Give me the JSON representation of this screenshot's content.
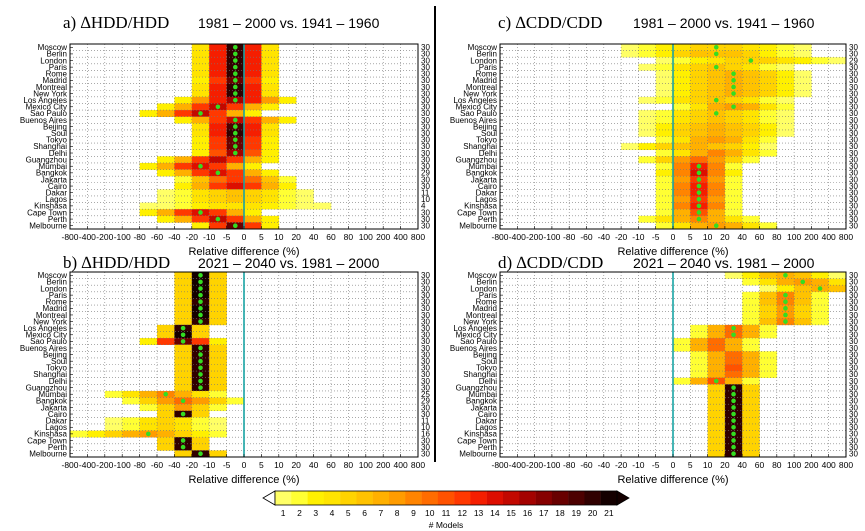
{
  "figure": {
    "colorbar_label": "# Models",
    "colorbar_ticks": [
      "1",
      "2",
      "3",
      "4",
      "5",
      "6",
      "7",
      "8",
      "9",
      "10",
      "11",
      "12",
      "13",
      "14",
      "15",
      "16",
      "17",
      "18",
      "19",
      "20",
      "21"
    ],
    "colorbar_colors": [
      "#ffff66",
      "#ffff33",
      "#fff000",
      "#ffe400",
      "#ffd300",
      "#ffc200",
      "#ffb000",
      "#ff9c00",
      "#ff8400",
      "#ff6c00",
      "#ff5200",
      "#ff3800",
      "#f51e00",
      "#dd0e00",
      "#c20800",
      "#a40200",
      "#860000",
      "#680000",
      "#4c0000",
      "#300000",
      "#140000"
    ]
  },
  "chart_data": [
    {
      "id": "a",
      "type": "heatmap",
      "title": "a) ∆HDD/HDD",
      "period": "1981 – 2000 vs. 1941 – 1960",
      "xlabel": "Relative difference (%)",
      "x_ticks": [
        "-800",
        "-400",
        "-200",
        "-100",
        "-80",
        "-60",
        "-40",
        "-20",
        "-10",
        "-5",
        "0",
        "5",
        "10",
        "20",
        "40",
        "60",
        "80",
        "100",
        "200",
        "400",
        "800"
      ],
      "cities": [
        "Moscow",
        "Berlin",
        "London",
        "Paris",
        "Rome",
        "Madrid",
        "Montreal",
        "New York",
        "Los Angeles",
        "Mexico City",
        "Sao Paulo",
        "Buenos Aires",
        "Beijing",
        "Soul",
        "Tokyo",
        "Shanghai",
        "Delhi",
        "Guangzhou",
        "Mumbai",
        "Bangkok",
        "Jakarta",
        "Cairo",
        "Dakar",
        "Lagos",
        "Kinshasa",
        "Cape Town",
        "Perth",
        "Melbourne"
      ],
      "model_counts": [
        "30",
        "30",
        "30",
        "30",
        "30",
        "30",
        "30",
        "30",
        "30",
        "30",
        "30",
        "30",
        "30",
        "30",
        "30",
        "30",
        "30",
        "30",
        "30",
        "29",
        "30",
        "30",
        "11",
        "10",
        "4",
        "30",
        "30",
        "30"
      ],
      "center_bin": [
        9,
        9,
        9,
        9,
        9,
        9,
        9,
        9,
        9,
        8,
        7,
        9,
        9,
        9,
        9,
        9,
        9,
        8,
        7,
        8,
        9,
        9,
        9,
        9,
        9,
        7,
        8,
        9
      ],
      "spread": [
        2,
        2,
        2,
        2,
        2,
        2,
        2,
        2,
        3,
        3,
        3,
        3,
        2,
        2,
        2,
        2,
        2,
        3,
        3,
        3,
        3,
        3,
        4,
        4,
        5,
        3,
        3,
        2
      ],
      "peak": [
        20,
        20,
        20,
        20,
        20,
        18,
        20,
        20,
        16,
        15,
        15,
        15,
        19,
        20,
        18,
        18,
        16,
        15,
        14,
        14,
        12,
        14,
        6,
        6,
        4,
        14,
        15,
        18
      ],
      "has_median_dot": [
        true,
        true,
        true,
        true,
        true,
        true,
        true,
        true,
        true,
        true,
        true,
        true,
        true,
        true,
        true,
        true,
        true,
        false,
        true,
        true,
        false,
        false,
        false,
        false,
        false,
        true,
        true,
        true
      ]
    },
    {
      "id": "b",
      "type": "heatmap",
      "title": "b) ∆HDD/HDD",
      "period": "2021 – 2040 vs. 1981 – 2000",
      "xlabel": "Relative difference (%)",
      "x_ticks": [
        "-800",
        "-400",
        "-200",
        "-100",
        "-80",
        "-60",
        "-40",
        "-20",
        "-10",
        "-5",
        "0",
        "5",
        "10",
        "20",
        "40",
        "60",
        "80",
        "100",
        "200",
        "400",
        "800"
      ],
      "cities": [
        "Moscow",
        "Berlin",
        "London",
        "Paris",
        "Rome",
        "Madrid",
        "Montreal",
        "New York",
        "Los Angeles",
        "Mexico City",
        "Sao Paulo",
        "Buenos Aires",
        "Beijing",
        "Soul",
        "Tokyo",
        "Shanghai",
        "Delhi",
        "Guangzhou",
        "Mumbai",
        "Bangkok",
        "Jakarta",
        "Cairo",
        "Dakar",
        "Lagos",
        "Kinshasa",
        "Cape Town",
        "Perth",
        "Melbourne"
      ],
      "model_counts": [
        "30",
        "30",
        "30",
        "30",
        "30",
        "30",
        "30",
        "30",
        "30",
        "30",
        "30",
        "30",
        "30",
        "30",
        "30",
        "30",
        "30",
        "30",
        "25",
        "29",
        "30",
        "30",
        "11",
        "10",
        "16",
        "30",
        "30",
        "30"
      ],
      "center_bin": [
        7,
        7,
        7,
        7,
        7,
        7,
        7,
        7,
        6,
        6,
        6,
        7,
        7,
        7,
        7,
        7,
        7,
        7,
        5,
        6,
        6,
        6,
        5,
        5,
        4,
        6,
        6,
        7
      ],
      "spread": [
        1,
        1,
        1,
        1,
        1,
        1,
        1,
        1,
        1,
        1,
        2,
        1,
        1,
        1,
        1,
        1,
        1,
        1,
        3,
        3,
        2,
        1,
        3,
        3,
        4,
        1,
        1,
        1
      ],
      "peak": [
        21,
        21,
        21,
        21,
        20,
        21,
        21,
        20,
        20,
        21,
        18,
        20,
        20,
        20,
        20,
        20,
        20,
        20,
        9,
        10,
        8,
        20,
        5,
        5,
        8,
        20,
        20,
        20
      ],
      "has_median_dot": [
        true,
        true,
        true,
        true,
        true,
        true,
        true,
        true,
        true,
        true,
        true,
        true,
        true,
        true,
        true,
        true,
        true,
        true,
        true,
        true,
        false,
        true,
        false,
        false,
        true,
        true,
        true,
        true
      ]
    },
    {
      "id": "c",
      "type": "heatmap",
      "title": "c) ∆CDD/CDD",
      "period": "1981 – 2000 vs. 1941 – 1960",
      "xlabel": "Relative difference (%)",
      "x_ticks": [
        "-800",
        "-400",
        "-200",
        "-100",
        "-80",
        "-60",
        "-40",
        "-20",
        "-10",
        "-5",
        "0",
        "5",
        "10",
        "20",
        "40",
        "60",
        "80",
        "100",
        "200",
        "400",
        "800"
      ],
      "cities": [
        "Moscow",
        "Berlin",
        "London",
        "Paris",
        "Rome",
        "Madrid",
        "Montreal",
        "New York",
        "Los Angeles",
        "Mexico City",
        "Sao Paulo",
        "Buenos Aires",
        "Beijing",
        "Soul",
        "Tokyo",
        "Shanghai",
        "Delhi",
        "Guangzhou",
        "Mumbai",
        "Bangkok",
        "Jakarta",
        "Cairo",
        "Dakar",
        "Lagos",
        "Kinshasa",
        "Cape Town",
        "Perth",
        "Melbourne"
      ],
      "model_counts": [
        "30",
        "30",
        "29",
        "30",
        "30",
        "30",
        "30",
        "30",
        "30",
        "30",
        "30",
        "30",
        "30",
        "30",
        "30",
        "30",
        "30",
        "30",
        "30",
        "30",
        "30",
        "30",
        "30",
        "30",
        "30",
        "30",
        "30",
        "30"
      ],
      "center_bin": [
        12,
        12,
        14,
        12,
        13,
        13,
        13,
        13,
        12,
        13,
        12,
        12,
        12,
        12,
        12,
        11,
        12,
        11,
        11,
        11,
        11,
        11,
        11,
        11,
        11,
        11,
        11,
        12
      ],
      "spread": [
        5,
        5,
        5,
        4,
        4,
        4,
        4,
        4,
        4,
        3,
        4,
        4,
        4,
        4,
        3,
        4,
        3,
        3,
        2,
        2,
        2,
        2,
        2,
        2,
        2,
        2,
        3,
        3
      ],
      "peak": [
        5,
        6,
        5,
        6,
        7,
        7,
        7,
        7,
        6,
        8,
        6,
        6,
        7,
        7,
        8,
        7,
        9,
        10,
        13,
        14,
        12,
        13,
        13,
        12,
        13,
        11,
        9,
        8
      ],
      "has_median_dot": [
        true,
        true,
        true,
        true,
        true,
        true,
        true,
        true,
        true,
        true,
        true,
        false,
        false,
        false,
        false,
        false,
        false,
        false,
        true,
        true,
        true,
        true,
        true,
        true,
        true,
        true,
        true,
        true
      ]
    },
    {
      "id": "d",
      "type": "heatmap",
      "title": "d) ∆CDD/CDD",
      "period": "2021 – 2040 vs. 1981 – 2000",
      "xlabel": "Relative difference (%)",
      "x_ticks": [
        "-800",
        "-400",
        "-200",
        "-100",
        "-80",
        "-60",
        "-40",
        "-20",
        "-10",
        "-5",
        "0",
        "5",
        "10",
        "20",
        "40",
        "60",
        "80",
        "100",
        "200",
        "400",
        "800"
      ],
      "cities": [
        "Moscow",
        "Berlin",
        "London",
        "Paris",
        "Rome",
        "Madrid",
        "Montreal",
        "New York",
        "Los Angeles",
        "Mexico City",
        "Sao Paulo",
        "Buenos Aires",
        "Beijing",
        "Soul",
        "Tokyo",
        "Shanghai",
        "Delhi",
        "Guangzhou",
        "Mumbai",
        "Bangkok",
        "Jakarta",
        "Cairo",
        "Dakar",
        "Lagos",
        "Kinshasa",
        "Cape Town",
        "Perth",
        "Melbourne"
      ],
      "model_counts": [
        "30",
        "30",
        "30",
        "30",
        "30",
        "30",
        "30",
        "30",
        "30",
        "30",
        "30",
        "30",
        "30",
        "30",
        "30",
        "30",
        "30",
        "30",
        "30",
        "30",
        "30",
        "30",
        "30",
        "30",
        "30",
        "30",
        "30",
        "30"
      ],
      "center_bin": [
        16,
        17,
        18,
        16,
        16,
        16,
        16,
        16,
        13,
        13,
        12,
        12,
        13,
        13,
        13,
        13,
        12,
        13,
        13,
        13,
        13,
        13,
        13,
        13,
        13,
        13,
        13,
        13
      ],
      "spread": [
        3,
        3,
        3,
        2,
        2,
        2,
        2,
        2,
        2,
        2,
        2,
        2,
        2,
        2,
        2,
        2,
        2,
        1,
        1,
        1,
        1,
        1,
        1,
        1,
        1,
        1,
        1,
        1
      ],
      "peak": [
        7,
        8,
        7,
        9,
        9,
        8,
        8,
        9,
        10,
        10,
        10,
        10,
        10,
        10,
        11,
        10,
        11,
        20,
        20,
        20,
        20,
        20,
        20,
        20,
        20,
        20,
        20,
        20
      ],
      "has_median_dot": [
        true,
        true,
        true,
        true,
        true,
        true,
        true,
        true,
        true,
        true,
        false,
        false,
        false,
        false,
        false,
        false,
        true,
        true,
        true,
        true,
        true,
        true,
        true,
        true,
        true,
        true,
        true,
        true
      ]
    }
  ]
}
